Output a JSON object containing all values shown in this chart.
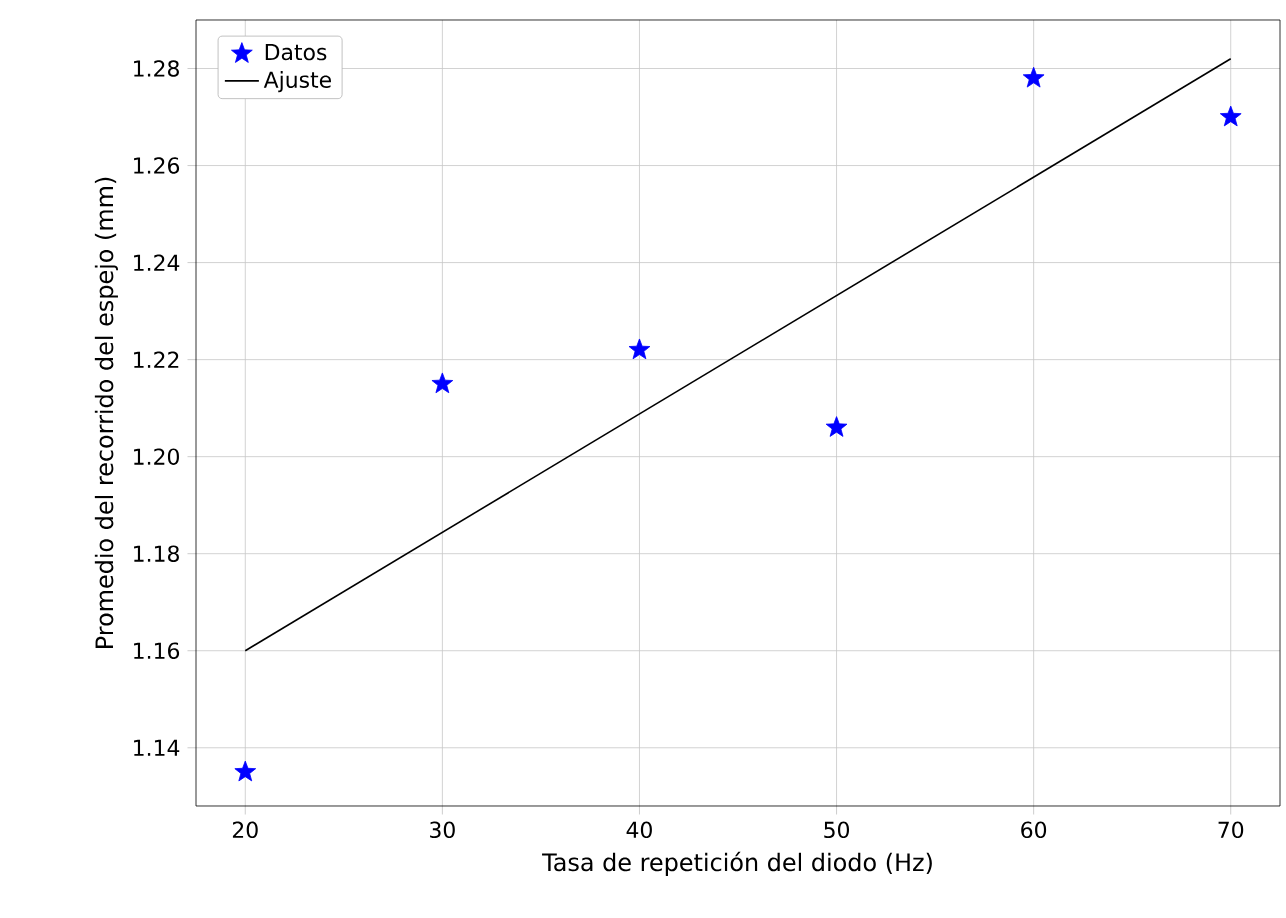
{
  "chart_data": {
    "type": "scatter",
    "xlabel": "Tasa de repetición del diodo (Hz)",
    "ylabel": "Promedio del recorrido del espejo (mm)",
    "x": [
      20,
      30,
      40,
      50,
      60,
      70
    ],
    "series": [
      {
        "name": "Datos",
        "color": "#0000ff",
        "marker": "star",
        "values": [
          1.135,
          1.215,
          1.222,
          1.206,
          1.278,
          1.27
        ]
      },
      {
        "name": "Ajuste",
        "type": "line",
        "color": "#000000",
        "marker": "none",
        "x": [
          20,
          70
        ],
        "values": [
          1.16,
          1.282
        ]
      }
    ],
    "xlim": [
      17.5,
      72.5
    ],
    "ylim": [
      1.128,
      1.29
    ],
    "xticks": [
      20,
      30,
      40,
      50,
      60,
      70
    ],
    "yticks": [
      {
        "value": 1.14,
        "label": "1.14"
      },
      {
        "value": 1.16,
        "label": "1.16"
      },
      {
        "value": 1.18,
        "label": "1.18"
      },
      {
        "value": 1.2,
        "label": "1.20"
      },
      {
        "value": 1.22,
        "label": "1.22"
      },
      {
        "value": 1.24,
        "label": "1.24"
      },
      {
        "value": 1.26,
        "label": "1.26"
      },
      {
        "value": 1.28,
        "label": "1.28"
      }
    ],
    "grid": true,
    "legend": "top left"
  }
}
